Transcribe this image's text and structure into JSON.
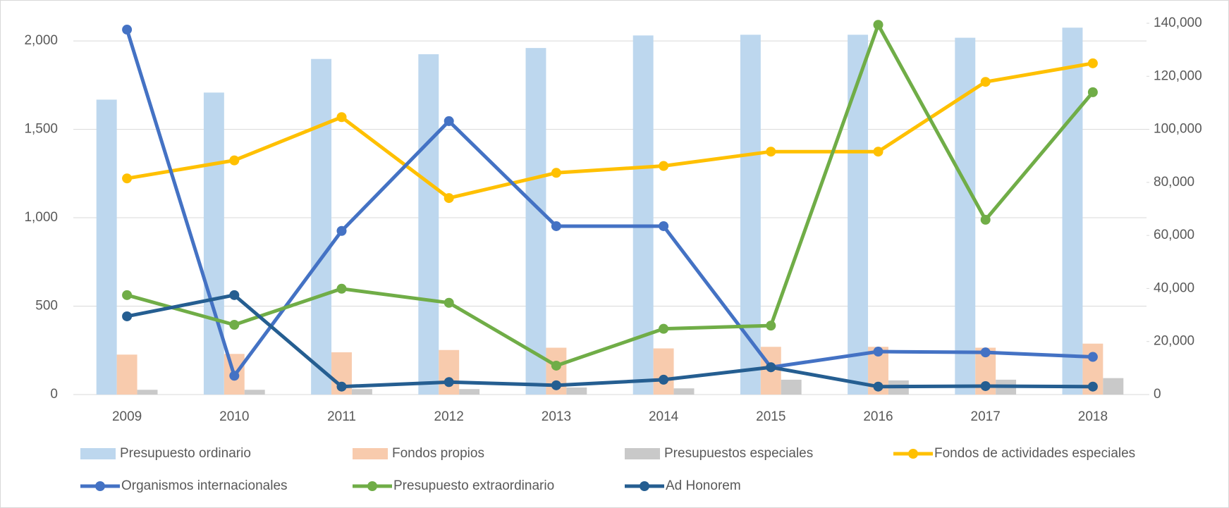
{
  "chart_data": {
    "type": "combo",
    "categories": [
      "2009",
      "2010",
      "2011",
      "2012",
      "2013",
      "2014",
      "2015",
      "2016",
      "2017",
      "2018"
    ],
    "series": [
      {
        "name": "Presupuesto ordinario",
        "type": "bar",
        "color": "#bdd7ee",
        "values": [
          1668,
          1708,
          1898,
          1925,
          1960,
          2031,
          2035,
          2035,
          2018,
          2075
        ]
      },
      {
        "name": "Fondos propios",
        "type": "bar",
        "color": "#f8cbad",
        "values": [
          226,
          230,
          239,
          252,
          265,
          261,
          270,
          270,
          265,
          288
        ]
      },
      {
        "name": "Presupuestos especiales",
        "type": "bar",
        "color": "#c9c9c9",
        "values": [
          27,
          27,
          31,
          31,
          40,
          35,
          84,
          80,
          84,
          93
        ]
      },
      {
        "name": "Fondos de actividades especiales",
        "type": "line",
        "axis": "y2",
        "color": "#ffc000",
        "values": [
          81500,
          88300,
          104600,
          74100,
          83600,
          86200,
          91600,
          91600,
          117900,
          124900
        ]
      },
      {
        "name": "Organismos internacionales",
        "type": "line",
        "axis": "y2",
        "color": "#4472c4",
        "values": [
          137600,
          7100,
          61700,
          103100,
          63500,
          63500,
          10300,
          16200,
          15900,
          14200
        ]
      },
      {
        "name": "Presupuesto extraordinario",
        "type": "line",
        "axis": "y2",
        "color": "#70ad47",
        "values": [
          37500,
          26300,
          39900,
          34600,
          10900,
          24800,
          26000,
          139400,
          65900,
          114000
        ]
      },
      {
        "name": "Ad Honorem",
        "type": "line",
        "axis": "y2",
        "color": "#255e91",
        "values": [
          29500,
          37500,
          3000,
          4700,
          3500,
          5600,
          10300,
          3000,
          3200,
          3000
        ]
      }
    ],
    "ylim": [
      0,
      2100
    ],
    "yticks": [
      0,
      500,
      {
        "value": 1000,
        "label": "1,000"
      },
      {
        "value": 1500,
        "label": "1,500"
      },
      {
        "value": 2000,
        "label": "2,000"
      }
    ],
    "y2lim": [
      0,
      140000
    ],
    "y2ticks": [
      0,
      {
        "value": 20000,
        "label": "20,000"
      },
      {
        "value": 40000,
        "label": "40,000"
      },
      {
        "value": 60000,
        "label": "60,000"
      },
      {
        "value": 80000,
        "label": "80,000"
      },
      {
        "value": 100000,
        "label": "100,000"
      },
      {
        "value": 120000,
        "label": "120,000"
      },
      {
        "value": 140000,
        "label": "140,000"
      }
    ],
    "grid": true,
    "legend": "bottom"
  }
}
